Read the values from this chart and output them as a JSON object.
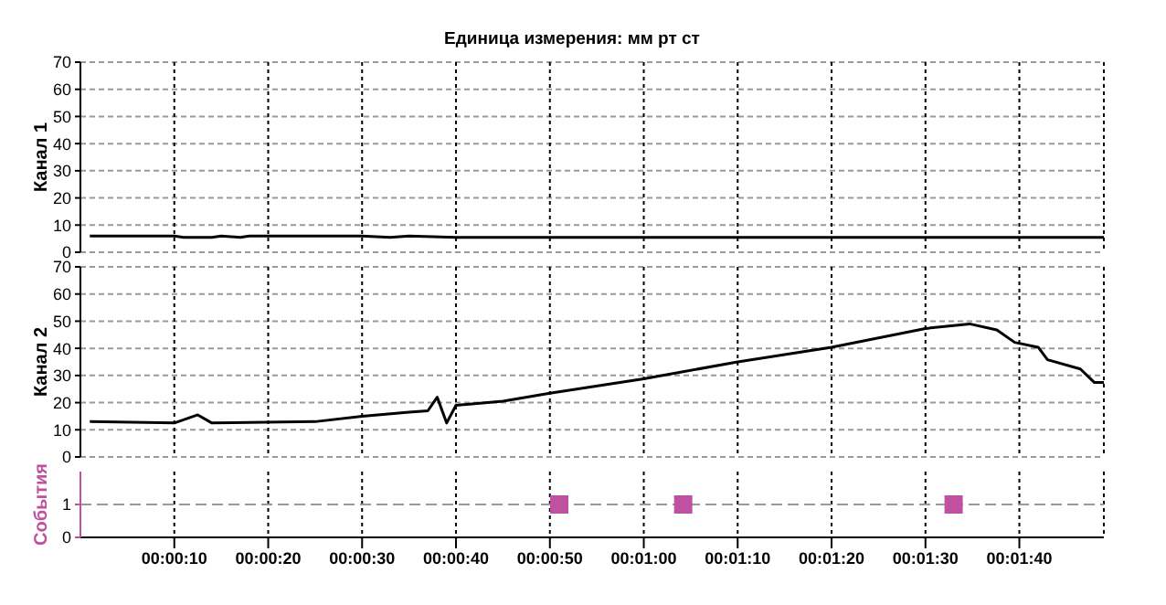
{
  "chart_data": [
    {
      "type": "line",
      "title": "Единица измерения: мм рт ст",
      "ylabel": "Канал 1",
      "xlim": [
        0,
        109
      ],
      "xticks": [
        10,
        20,
        30,
        40,
        50,
        60,
        70,
        80,
        90,
        100
      ],
      "ylim": [
        0,
        70
      ],
      "yticks": [
        0,
        10,
        20,
        30,
        40,
        50,
        60,
        70
      ],
      "tick_labels": "y",
      "grid": true,
      "marker": "none",
      "line_style": "solid",
      "series": [
        {
          "color": "#000000",
          "x": [
            1,
            10,
            11,
            14,
            15,
            17,
            18,
            20,
            30,
            33,
            35,
            40,
            109
          ],
          "values": [
            6,
            6,
            5.5,
            5.5,
            6,
            5.5,
            6,
            6,
            6,
            5.5,
            6,
            5.5,
            5.5
          ]
        }
      ]
    },
    {
      "type": "line",
      "ylabel": "Канал 2",
      "xlim": [
        0,
        109
      ],
      "xticks": [
        10,
        20,
        30,
        40,
        50,
        60,
        70,
        80,
        90,
        100
      ],
      "ylim": [
        0,
        70
      ],
      "yticks": [
        0,
        10,
        20,
        30,
        40,
        50,
        60,
        70
      ],
      "tick_labels": "y",
      "grid": true,
      "marker": "none",
      "line_style": "solid",
      "series": [
        {
          "color": "#000000",
          "x": [
            1,
            10,
            12.5,
            14,
            25,
            30,
            35,
            37,
            38,
            39,
            40,
            45,
            50,
            60,
            70,
            80,
            90,
            94.7,
            97.6,
            99.5,
            102,
            103,
            106.5,
            108,
            109
          ],
          "values": [
            13,
            12.5,
            15.5,
            12.5,
            13,
            15,
            16.5,
            17,
            22,
            12.5,
            19,
            20.5,
            23.5,
            28.8,
            35,
            40.4,
            47.3,
            49,
            46.8,
            42.2,
            40.4,
            35.8,
            32.4,
            27.4,
            27.4
          ]
        }
      ]
    },
    {
      "type": "scatter",
      "ylabel": "События",
      "xlim": [
        0,
        109
      ],
      "xticks": [
        {
          "value": 10,
          "label": "00:00:10"
        },
        {
          "value": 20,
          "label": "00:00:20"
        },
        {
          "value": 30,
          "label": "00:00:30"
        },
        {
          "value": 40,
          "label": "00:00:40"
        },
        {
          "value": 50,
          "label": "00:00:50"
        },
        {
          "value": 60,
          "label": "00:01:00"
        },
        {
          "value": 70,
          "label": "00:01:10"
        },
        {
          "value": 80,
          "label": "00:01:20"
        },
        {
          "value": 90,
          "label": "00:01:30"
        },
        {
          "value": 100,
          "label": "00:01:40"
        }
      ],
      "ylim": [
        0,
        2
      ],
      "yticks": [
        0,
        1
      ],
      "grid": "x",
      "ref_lines": [
        {
          "axis": "y",
          "value": 1,
          "color": "#999999",
          "line_style": "dashed"
        }
      ],
      "marker": "square",
      "series": [
        {
          "color": "#c050a0",
          "x": [
            51,
            64.2,
            93
          ],
          "values": [
            1,
            1,
            1
          ]
        }
      ]
    }
  ]
}
